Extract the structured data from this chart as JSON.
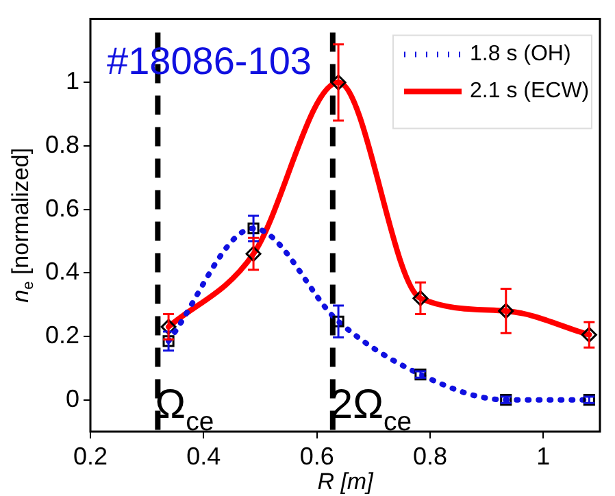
{
  "chart_data": {
    "type": "line",
    "xlabel": "R [m]",
    "ylabel": "n$_{e}$ [normalized]",
    "xlim": [
      0.2,
      1.1
    ],
    "xticks": [
      0.2,
      0.4,
      0.6,
      0.8,
      1
    ],
    "ylim": [
      -0.1,
      1.2
    ],
    "yticks": [
      0,
      0.2,
      0.4,
      0.6,
      0.8,
      1
    ],
    "grid": false,
    "legend": "top right",
    "series": [
      {
        "name": "1.8 s (OH)",
        "color": "#1010e0",
        "marker": "square",
        "line_style": "dotted",
        "x": [
          0.338,
          0.488,
          0.638,
          0.783,
          0.934,
          1.081
        ],
        "values": [
          0.185,
          0.54,
          0.247,
          0.08,
          0,
          0
        ],
        "errors": [
          0.03,
          0.04,
          0.05,
          0.01,
          0.01,
          0.01
        ]
      },
      {
        "name": "2.1 s (ECW)",
        "color": "#ff0000",
        "marker": "diamond",
        "line_style": "solid",
        "x": [
          0.338,
          0.488,
          0.638,
          0.783,
          0.934,
          1.081
        ],
        "values": [
          0.23,
          0.46,
          1.0,
          0.32,
          0.28,
          0.205
        ],
        "errors": [
          0.04,
          0.05,
          0.12,
          0.05,
          0.07,
          0.04
        ]
      }
    ],
    "ref_lines": [
      {
        "axis": "x",
        "value": 0.319,
        "label": "Ω$_{ce}$",
        "color": "#000000",
        "line_style": "dashed"
      },
      {
        "axis": "x",
        "value": 0.628,
        "label": "2Ω$_{ce}$",
        "color": "#000000",
        "line_style": "dashed"
      }
    ],
    "annotations": [
      "#18086-103"
    ]
  }
}
